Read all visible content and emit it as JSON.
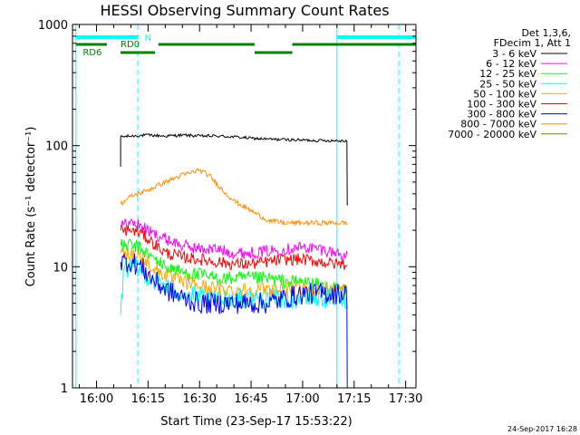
{
  "chart_data": {
    "type": "line",
    "title": "HESSI Observing Summary Count Rates",
    "xlabel": "Start Time (23-Sep-17 15:53:22)",
    "ylabel": "Count Rate (s⁻¹ detector⁻¹)",
    "y_scale": "log",
    "xlim": [
      "15:53",
      "17:33"
    ],
    "ylim": [
      1,
      1000
    ],
    "x_ticks": [
      "16:00",
      "16:15",
      "16:30",
      "16:45",
      "17:00",
      "17:15",
      "17:30"
    ],
    "y_ticks": [
      "1",
      "10",
      "100",
      "1000"
    ],
    "grid": false,
    "legend_position": "right",
    "legend_header": [
      "Det 1,3,6,",
      "FDecim 1, Att 1"
    ],
    "timestamp": "24-Sep-2017 16:28",
    "vertical_lines": [
      {
        "time": "15:54",
        "style": "solid",
        "color": "#00ffff"
      },
      {
        "time": "16:12",
        "style": "dashed",
        "color": "#00ffff"
      },
      {
        "time": "17:10",
        "style": "solid",
        "color": "#00ffff"
      },
      {
        "time": "17:28",
        "style": "dashed",
        "color": "#00ffff"
      }
    ],
    "status_bars": [
      {
        "label": "N",
        "color": "#00ffff",
        "segments": [
          [
            "15:54",
            "16:12"
          ],
          [
            "17:10",
            "17:33"
          ]
        ]
      },
      {
        "label": "RD0",
        "color": "#008000",
        "segments": [
          [
            "15:54",
            "16:03"
          ],
          [
            "16:18",
            "16:46"
          ],
          [
            "16:57",
            "17:33"
          ]
        ]
      },
      {
        "label": "RD6",
        "color": "#008000",
        "segments": [
          [
            "16:07",
            "16:17"
          ],
          [
            "16:46",
            "16:57"
          ]
        ]
      }
    ],
    "series": [
      {
        "name": "3 - 6 keV",
        "color": "#000000",
        "points": [
          [
            "16:07",
            67
          ],
          [
            "16:07",
            118
          ],
          [
            "16:10",
            120
          ],
          [
            "16:15",
            122
          ],
          [
            "16:20",
            120
          ],
          [
            "16:25",
            122
          ],
          [
            "16:30",
            120
          ],
          [
            "16:35",
            120
          ],
          [
            "16:40",
            118
          ],
          [
            "16:45",
            115
          ],
          [
            "16:50",
            113
          ],
          [
            "16:55",
            112
          ],
          [
            "17:00",
            111
          ],
          [
            "17:05",
            110
          ],
          [
            "17:10",
            110
          ],
          [
            "17:13",
            110
          ],
          [
            "17:13",
            32
          ]
        ]
      },
      {
        "name": "6 - 12 keV",
        "color": "#ff00ff",
        "points": [
          [
            "16:07",
            22
          ],
          [
            "16:10",
            23
          ],
          [
            "16:13",
            22
          ],
          [
            "16:16",
            19
          ],
          [
            "16:20",
            17
          ],
          [
            "16:25",
            15
          ],
          [
            "16:30",
            14
          ],
          [
            "16:35",
            14
          ],
          [
            "16:40",
            13
          ],
          [
            "16:45",
            13
          ],
          [
            "16:50",
            13.5
          ],
          [
            "16:55",
            14
          ],
          [
            "17:00",
            14.5
          ],
          [
            "17:05",
            14
          ],
          [
            "17:10",
            13
          ],
          [
            "17:13",
            12
          ]
        ]
      },
      {
        "name": "12 - 25 keV",
        "color": "#00ff00",
        "points": [
          [
            "16:07",
            15
          ],
          [
            "16:10",
            15
          ],
          [
            "16:13",
            14
          ],
          [
            "16:16",
            12
          ],
          [
            "16:20",
            10
          ],
          [
            "16:25",
            9
          ],
          [
            "16:30",
            8.5
          ],
          [
            "16:35",
            8
          ],
          [
            "16:40",
            8
          ],
          [
            "16:45",
            8
          ],
          [
            "16:50",
            8
          ],
          [
            "16:55",
            7.5
          ],
          [
            "17:00",
            7.5
          ],
          [
            "17:05",
            7
          ],
          [
            "17:10",
            6.5
          ],
          [
            "17:13",
            6.5
          ]
        ]
      },
      {
        "name": "25 - 50 keV",
        "color": "#00ffff",
        "points": [
          [
            "16:07",
            4
          ],
          [
            "16:08",
            10
          ],
          [
            "16:12",
            9.5
          ],
          [
            "16:16",
            8
          ],
          [
            "16:20",
            7
          ],
          [
            "16:25",
            6
          ],
          [
            "16:30",
            5.5
          ],
          [
            "16:35",
            5.5
          ],
          [
            "16:40",
            5.5
          ],
          [
            "16:45",
            5.5
          ],
          [
            "16:50",
            5.5
          ],
          [
            "16:55",
            5.5
          ],
          [
            "17:00",
            5.5
          ],
          [
            "17:05",
            5.5
          ],
          [
            "17:10",
            5.5
          ],
          [
            "17:13",
            5.5
          ]
        ]
      },
      {
        "name": "50 - 100 keV",
        "color": "#ffa500",
        "points": [
          [
            "16:07",
            13
          ],
          [
            "16:10",
            13
          ],
          [
            "16:13",
            12
          ],
          [
            "16:16",
            10
          ],
          [
            "16:20",
            8.5
          ],
          [
            "16:25",
            7.5
          ],
          [
            "16:30",
            7
          ],
          [
            "16:35",
            6.5
          ],
          [
            "16:40",
            6.5
          ],
          [
            "16:45",
            6.5
          ],
          [
            "16:50",
            6.5
          ],
          [
            "16:55",
            6.5
          ],
          [
            "17:00",
            6.5
          ],
          [
            "17:05",
            6.5
          ],
          [
            "17:10",
            6.5
          ],
          [
            "17:13",
            6.5
          ]
        ]
      },
      {
        "name": "100 - 300 keV",
        "color": "#ff0000",
        "points": [
          [
            "16:07",
            20
          ],
          [
            "16:10",
            20
          ],
          [
            "16:13",
            19
          ],
          [
            "16:16",
            16
          ],
          [
            "16:20",
            13
          ],
          [
            "16:25",
            12
          ],
          [
            "16:30",
            11.5
          ],
          [
            "16:35",
            11
          ],
          [
            "16:40",
            10.5
          ],
          [
            "16:45",
            10.5
          ],
          [
            "16:50",
            11
          ],
          [
            "16:55",
            11.5
          ],
          [
            "17:00",
            11.5
          ],
          [
            "17:05",
            11
          ],
          [
            "17:10",
            10.5
          ],
          [
            "17:13",
            10.5
          ]
        ]
      },
      {
        "name": "300 - 800 keV",
        "color": "#0000ff",
        "points": [
          [
            "16:07",
            11
          ],
          [
            "16:10",
            11
          ],
          [
            "16:13",
            10
          ],
          [
            "16:16",
            8
          ],
          [
            "16:20",
            6.5
          ],
          [
            "16:25",
            5.5
          ],
          [
            "16:30",
            5
          ],
          [
            "16:35",
            5
          ],
          [
            "16:40",
            5
          ],
          [
            "16:45",
            5
          ],
          [
            "16:50",
            5
          ],
          [
            "16:55",
            5.5
          ],
          [
            "17:00",
            6
          ],
          [
            "17:05",
            6
          ],
          [
            "17:10",
            6
          ],
          [
            "17:13",
            6
          ],
          [
            "17:13",
            1
          ]
        ]
      },
      {
        "name": "800 - 7000 keV",
        "color": "#ff8c00",
        "points": [
          [
            "16:07",
            33
          ],
          [
            "16:10",
            38
          ],
          [
            "16:15",
            43
          ],
          [
            "16:20",
            50
          ],
          [
            "16:25",
            57
          ],
          [
            "16:30",
            63
          ],
          [
            "16:33",
            56
          ],
          [
            "16:37",
            42
          ],
          [
            "16:40",
            35
          ],
          [
            "16:45",
            29
          ],
          [
            "16:50",
            24
          ],
          [
            "16:55",
            23
          ],
          [
            "17:00",
            23
          ],
          [
            "17:05",
            23
          ],
          [
            "17:10",
            23
          ],
          [
            "17:13",
            23
          ]
        ]
      },
      {
        "name": "7000 - 20000 keV",
        "color": "#808000",
        "points": []
      }
    ]
  }
}
